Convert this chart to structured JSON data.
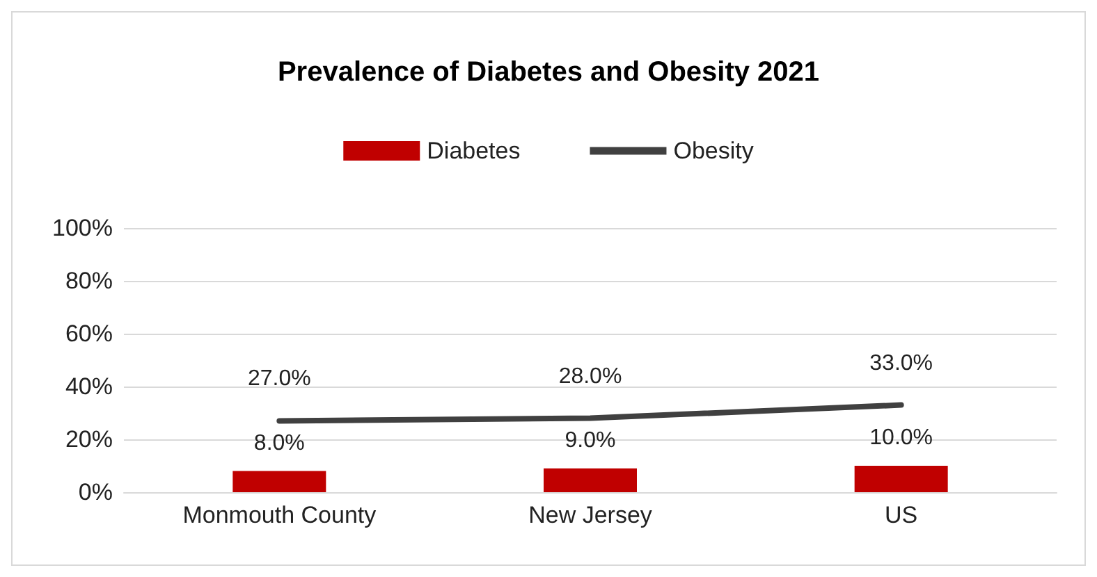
{
  "chart_data": {
    "type": "bar",
    "title": "Prevalence of Diabetes and Obesity 2021",
    "categories": [
      "Monmouth County",
      "New Jersey",
      "US"
    ],
    "series": [
      {
        "name": "Diabetes",
        "color": "#c00000",
        "values": [
          8,
          9,
          10
        ],
        "value_labels": [
          "8.0%",
          "9.0%",
          "10.0%"
        ]
      },
      {
        "name": "Obesity",
        "type": "line",
        "color": "#404040",
        "values": [
          27,
          28,
          33
        ],
        "value_labels": [
          "27.0%",
          "28.0%",
          "33.0%"
        ]
      }
    ],
    "ylim": [
      0,
      100
    ],
    "yticks": [
      {
        "value": 0,
        "label": "0%"
      },
      {
        "value": 20,
        "label": "20%"
      },
      {
        "value": 40,
        "label": "40%"
      },
      {
        "value": 60,
        "label": "60%"
      },
      {
        "value": 80,
        "label": "80%"
      },
      {
        "value": 100,
        "label": "100%"
      }
    ],
    "grid": "y",
    "legend": "top",
    "marker": "none",
    "line_style": "solid"
  }
}
